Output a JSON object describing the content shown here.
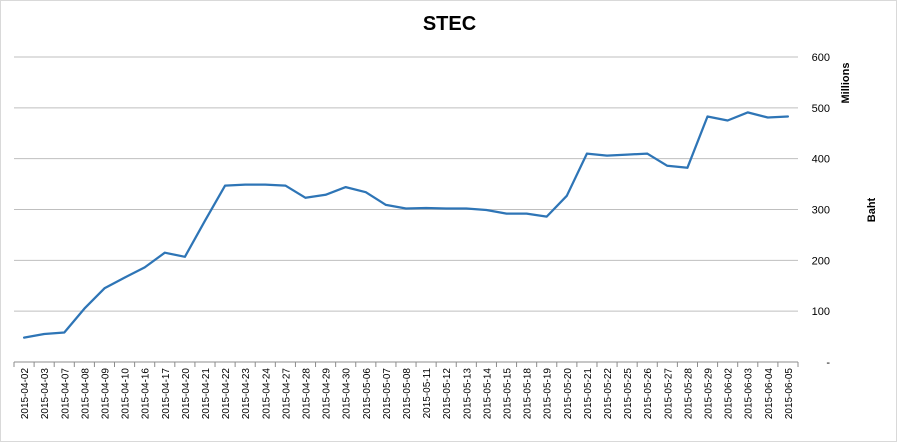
{
  "chart_data": {
    "type": "line",
    "title": "STEC",
    "ylabel": "Baht",
    "yunit": "Millions",
    "ylim": [
      0,
      600
    ],
    "yticks": [
      "-",
      "100",
      "200",
      "300",
      "400",
      "500",
      "600"
    ],
    "grid": true,
    "legend": "none",
    "categories": [
      "2015-04-02",
      "2015-04-03",
      "2015-04-07",
      "2015-04-08",
      "2015-04-09",
      "2015-04-10",
      "2015-04-16",
      "2015-04-17",
      "2015-04-20",
      "2015-04-21",
      "2015-04-22",
      "2015-04-23",
      "2015-04-24",
      "2015-04-27",
      "2015-04-28",
      "2015-04-29",
      "2015-04-30",
      "2015-05-06",
      "2015-05-07",
      "2015-05-08",
      "2015-05-11",
      "2015-05-12",
      "2015-05-13",
      "2015-05-14",
      "2015-05-15",
      "2015-05-18",
      "2015-05-19",
      "2015-05-20",
      "2015-05-21",
      "2015-05-22",
      "2015-05-25",
      "2015-05-26",
      "2015-05-27",
      "2015-05-28",
      "2015-05-29",
      "2015-06-02",
      "2015-06-03",
      "2015-06-04",
      "2015-06-05"
    ],
    "series": [
      {
        "color": "#2e75b6",
        "values": [
          48,
          55,
          58,
          105,
          145,
          166,
          186,
          215,
          207,
          278,
          347,
          349,
          349,
          347,
          323,
          329,
          344,
          334,
          309,
          302,
          303,
          302,
          302,
          299,
          292,
          292,
          286,
          327,
          410,
          406,
          408,
          410,
          386,
          382,
          483,
          475,
          491,
          481,
          483
        ]
      }
    ]
  }
}
